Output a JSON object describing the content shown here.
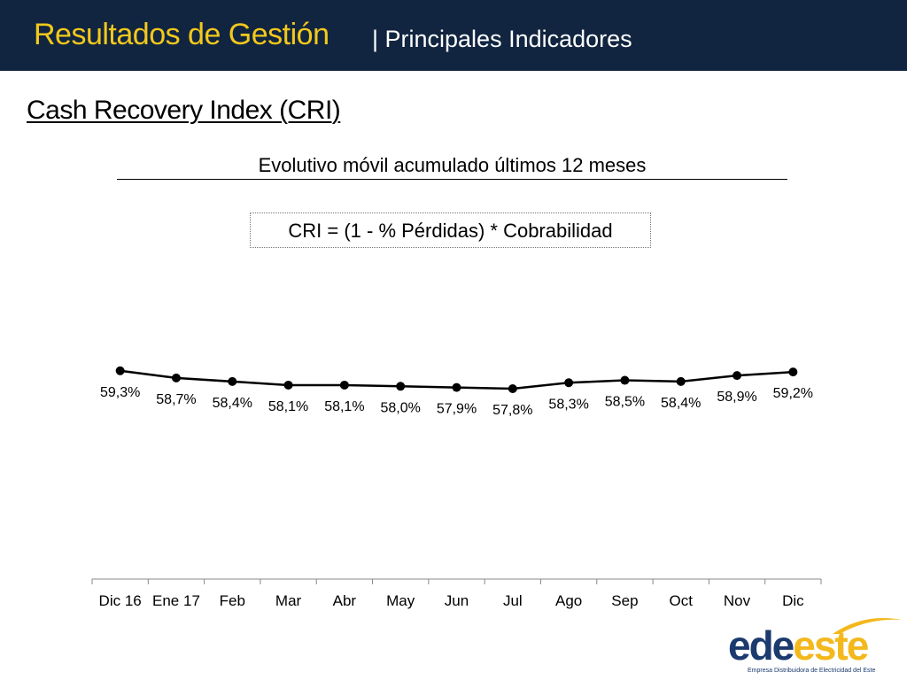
{
  "header": {
    "title": "Resultados de Gestión",
    "subtitle": "| Principales Indicadores"
  },
  "section_title": "Cash Recovery Index (CRI)",
  "chart_subtitle": "Evolutivo móvil acumulado últimos 12 meses",
  "formula": "CRI = (1 - % Pérdidas) * Cobrabilidad",
  "colors": {
    "header_bg": "#112540",
    "title": "#f3c81c",
    "series": "#000000",
    "logo_blue": "#1b3a6e",
    "logo_yellow": "#f3b81c"
  },
  "chart_data": {
    "type": "line",
    "title": "Evolutivo móvil acumulado últimos 12 meses",
    "categories": [
      "Dic 16",
      "Ene 17",
      "Feb",
      "Mar",
      "Abr",
      "May",
      "Jun",
      "Jul",
      "Ago",
      "Sep",
      "Oct",
      "Nov",
      "Dic"
    ],
    "series": [
      {
        "values": [
          59.3,
          58.7,
          58.4,
          58.1,
          58.1,
          58.0,
          57.9,
          57.8,
          58.3,
          58.5,
          58.4,
          58.9,
          59.2
        ],
        "labels": [
          "59,3%",
          "58,7%",
          "58,4%",
          "58,1%",
          "58,1%",
          "58,0%",
          "57,9%",
          "57,8%",
          "58,3%",
          "58,5%",
          "58,4%",
          "58,9%",
          "59,2%"
        ]
      }
    ],
    "xlabel": "",
    "ylabel": "",
    "y_axis_visible": false,
    "grid": false,
    "legend": "none"
  },
  "logo": {
    "word_part1": "ede",
    "word_part2": "este",
    "tagline": "Empresa Distribuidora de Electricidad del Este"
  }
}
